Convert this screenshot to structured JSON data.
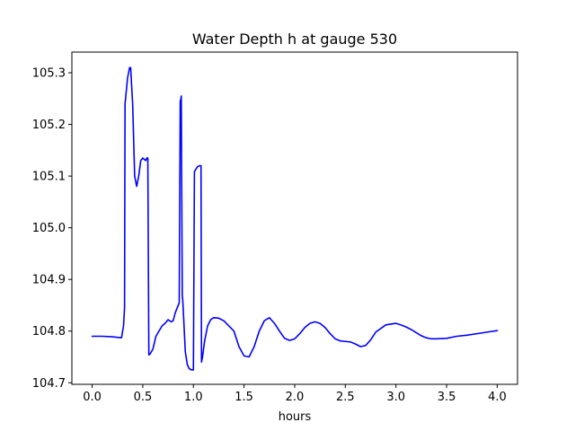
{
  "chart_data": {
    "type": "line",
    "title": "Water Depth h at gauge 530",
    "xlabel": "hours",
    "ylabel": "",
    "xlim": [
      -0.2,
      4.2
    ],
    "ylim": [
      104.697,
      105.34
    ],
    "grid": false,
    "legend": "none",
    "x_ticks": [
      0.0,
      0.5,
      1.0,
      1.5,
      2.0,
      2.5,
      3.0,
      3.5,
      4.0
    ],
    "x_tick_labels": [
      "0.0",
      "0.5",
      "1.0",
      "1.5",
      "2.0",
      "2.5",
      "3.0",
      "3.5",
      "4.0"
    ],
    "y_ticks": [
      104.7,
      104.8,
      104.9,
      105.0,
      105.1,
      105.2,
      105.3
    ],
    "y_tick_labels": [
      "104.7",
      "104.8",
      "104.9",
      "105.0",
      "105.1",
      "105.2",
      "105.3"
    ],
    "series": [
      {
        "name": "",
        "color": "#0000ff",
        "x": [
          0.0,
          0.1,
          0.2,
          0.29,
          0.31,
          0.32,
          0.325,
          0.33,
          0.35,
          0.37,
          0.38,
          0.4,
          0.42,
          0.44,
          0.46,
          0.48,
          0.5,
          0.53,
          0.54,
          0.55,
          0.56,
          0.57,
          0.6,
          0.63,
          0.66,
          0.69,
          0.72,
          0.75,
          0.78,
          0.8,
          0.82,
          0.84,
          0.86,
          0.87,
          0.875,
          0.88,
          0.89,
          0.895,
          0.9,
          0.91,
          0.92,
          0.94,
          0.96,
          0.98,
          1.0,
          1.01,
          1.015,
          1.02,
          1.04,
          1.06,
          1.075,
          1.08,
          1.09,
          1.11,
          1.14,
          1.17,
          1.2,
          1.25,
          1.3,
          1.35,
          1.4,
          1.45,
          1.5,
          1.55,
          1.6,
          1.65,
          1.7,
          1.75,
          1.8,
          1.85,
          1.9,
          1.95,
          2.0,
          2.05,
          2.1,
          2.15,
          2.2,
          2.25,
          2.3,
          2.35,
          2.4,
          2.45,
          2.5,
          2.55,
          2.6,
          2.65,
          2.7,
          2.75,
          2.8,
          2.9,
          3.0,
          3.05,
          3.1,
          3.15,
          3.2,
          3.25,
          3.3,
          3.35,
          3.4,
          3.5,
          3.6,
          3.7,
          3.8,
          3.9,
          4.0
        ],
        "y": [
          104.79,
          104.79,
          104.789,
          104.787,
          104.81,
          104.845,
          105.24,
          105.25,
          105.29,
          105.31,
          105.31,
          105.24,
          105.1,
          105.08,
          105.1,
          105.13,
          105.135,
          105.13,
          105.135,
          105.135,
          104.754,
          104.755,
          104.765,
          104.79,
          104.8,
          104.81,
          104.815,
          104.822,
          104.818,
          104.82,
          104.835,
          104.845,
          104.855,
          105.245,
          105.248,
          105.255,
          104.87,
          104.86,
          104.84,
          104.8,
          104.76,
          104.735,
          104.727,
          104.725,
          104.725,
          105.108,
          105.11,
          105.112,
          105.118,
          105.12,
          105.12,
          104.74,
          104.75,
          104.78,
          104.81,
          104.822,
          104.826,
          104.825,
          104.82,
          104.81,
          104.8,
          104.77,
          104.752,
          104.75,
          104.77,
          104.8,
          104.82,
          104.826,
          104.815,
          104.8,
          104.786,
          104.782,
          104.785,
          104.795,
          104.807,
          104.815,
          104.818,
          104.815,
          104.807,
          104.795,
          104.785,
          104.781,
          104.78,
          104.779,
          104.775,
          104.77,
          104.772,
          104.783,
          104.798,
          104.812,
          104.815,
          104.812,
          104.808,
          104.803,
          104.797,
          104.791,
          104.787,
          104.785,
          104.785,
          104.786,
          104.79,
          104.792,
          104.795,
          104.798,
          104.801
        ]
      }
    ]
  }
}
